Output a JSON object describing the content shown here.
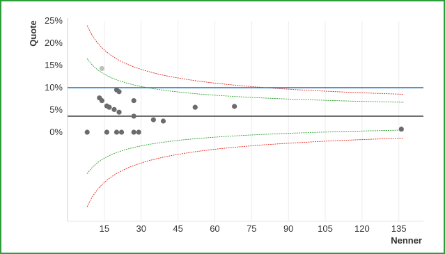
{
  "chart_data": {
    "type": "scatter",
    "xlabel": "Nenner",
    "ylabel": "Quote",
    "x_ticks": [
      15,
      30,
      45,
      60,
      75,
      90,
      105,
      120,
      135
    ],
    "y_ticks": [
      {
        "value": 0,
        "label": "0%"
      },
      {
        "value": 5,
        "label": "5%"
      },
      {
        "value": 10,
        "label": "10%"
      },
      {
        "value": 15,
        "label": "15%"
      },
      {
        "value": 20,
        "label": "20%"
      },
      {
        "value": 25,
        "label": "25%"
      }
    ],
    "xlim": [
      0,
      145
    ],
    "ylim": [
      -20,
      25
    ],
    "grid": "vertical",
    "points": [
      {
        "x": 8,
        "y": 0
      },
      {
        "x": 13,
        "y": 7.7
      },
      {
        "x": 14,
        "y": 7.1
      },
      {
        "x": 14,
        "y": 14.3,
        "highlight": true
      },
      {
        "x": 16,
        "y": 0
      },
      {
        "x": 16,
        "y": 5.9
      },
      {
        "x": 17,
        "y": 5.6
      },
      {
        "x": 19,
        "y": 5.1
      },
      {
        "x": 20,
        "y": 9.5
      },
      {
        "x": 21,
        "y": 9.1
      },
      {
        "x": 20,
        "y": 0
      },
      {
        "x": 21,
        "y": 4.5
      },
      {
        "x": 22,
        "y": 0
      },
      {
        "x": 27,
        "y": 7.1
      },
      {
        "x": 27,
        "y": 3.6
      },
      {
        "x": 27,
        "y": 0
      },
      {
        "x": 29,
        "y": 0
      },
      {
        "x": 35,
        "y": 2.8
      },
      {
        "x": 39,
        "y": 2.5
      },
      {
        "x": 52,
        "y": 5.6
      },
      {
        "x": 68,
        "y": 5.8
      },
      {
        "x": 136,
        "y": 0.7
      }
    ],
    "reference_lines": [
      {
        "y": 10,
        "color": "#1f6fc0"
      },
      {
        "y": 3.6,
        "color": "#444444"
      }
    ],
    "funnel_center": 3.6,
    "funnels": [
      {
        "z": 1.96,
        "color": "#2ea02e"
      },
      {
        "z": 3.09,
        "color": "#e0281e"
      }
    ],
    "point_color": "#6b6b6b",
    "highlight_color": "#bfbfbf"
  }
}
